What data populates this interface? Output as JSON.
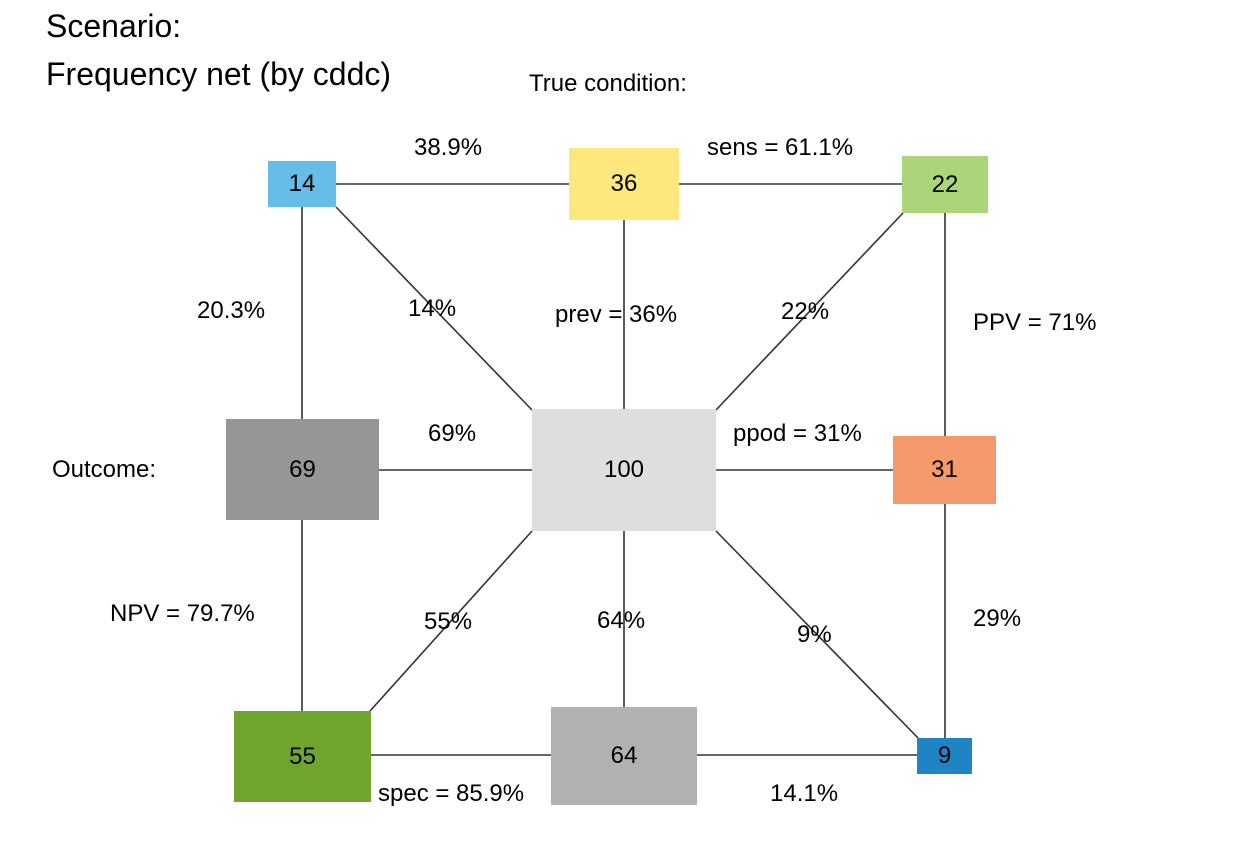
{
  "title": {
    "line1": "Scenario:",
    "line2": "Frequency net (by cddc)"
  },
  "headings": {
    "true_condition": "True condition:",
    "outcome": "Outcome:"
  },
  "nodes": {
    "n_false_neg": {
      "value": "14",
      "color": "#66bde8"
    },
    "n_cond_true": {
      "value": "36",
      "color": "#fee77c"
    },
    "n_true_pos": {
      "value": "22",
      "color": "#acd57a"
    },
    "n_dec_neg": {
      "value": "69",
      "color": "#969696"
    },
    "n_total": {
      "value": "100",
      "color": "#dedede"
    },
    "n_dec_pos": {
      "value": "31",
      "color": "#f4996c"
    },
    "n_true_neg": {
      "value": "55",
      "color": "#6fa52d"
    },
    "n_cond_false": {
      "value": "64",
      "color": "#b1b1b1"
    },
    "n_false_pos": {
      "value": "9",
      "color": "#1f84c3"
    }
  },
  "edge_labels": {
    "top_left": "38.9%",
    "sens": "sens = 61.1%",
    "left_upper": "20.3%",
    "diag_tl": "14%",
    "prev": "prev = 36%",
    "diag_tr": "22%",
    "ppv": "PPV = 71%",
    "mid_left": "69%",
    "ppod": "ppod = 31%",
    "npv": "NPV = 79.7%",
    "diag_bl": "55%",
    "center_bottom": "64%",
    "diag_br": "9%",
    "right_lower": "29%",
    "spec": "spec = 85.9%",
    "bottom_right": "14.1%"
  }
}
